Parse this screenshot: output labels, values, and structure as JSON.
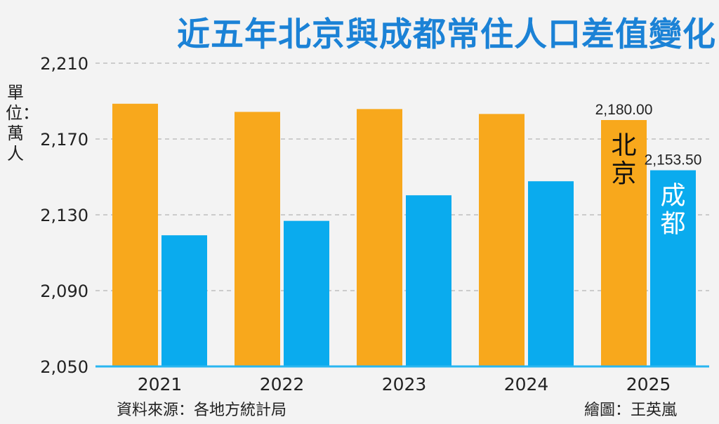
{
  "title": "近五年北京與成都常住人口差值變化",
  "unit_label": "單位：萬人",
  "source": "資料來源：各地方統計局",
  "credit": "繪圖：王英嵐",
  "colors": {
    "beijing": "#f8a81c",
    "chengdu": "#0aabee",
    "axis": "#29b6f0",
    "grid": "#b5b5b5",
    "title": "#1b82d6"
  },
  "chart_data": {
    "type": "bar",
    "title": "近五年北京與成都常住人口差值變化",
    "xlabel": "",
    "ylabel": "單位：萬人",
    "categories": [
      "2021",
      "2022",
      "2023",
      "2024",
      "2025"
    ],
    "yticks": [
      "2,050",
      "2,090",
      "2,130",
      "2,170",
      "2,210"
    ],
    "ylim": [
      2050,
      2210
    ],
    "grid": true,
    "series": [
      {
        "name": "北京",
        "values": [
          2188.6,
          2184.3,
          2185.8,
          2183.2,
          2180.0
        ],
        "color": "#f8a81c"
      },
      {
        "name": "成都",
        "values": [
          2119.2,
          2126.8,
          2140.3,
          2147.7,
          2153.5
        ],
        "color": "#0aabee"
      }
    ],
    "data_labels": [
      {
        "series": 0,
        "index": 4,
        "text": "2,180.00"
      },
      {
        "series": 1,
        "index": 4,
        "text": "2,153.50"
      }
    ]
  }
}
